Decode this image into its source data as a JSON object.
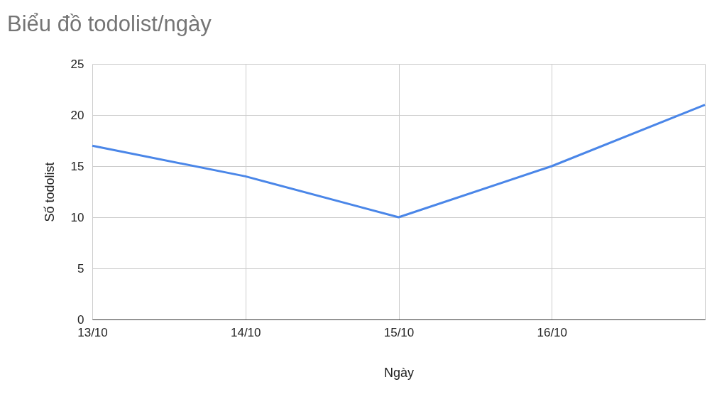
{
  "chart_data": {
    "type": "line",
    "title": "Biểu đồ todolist/ngày",
    "xlabel": "Ngày",
    "ylabel": "Số todolist",
    "categories": [
      "13/10",
      "14/10",
      "15/10",
      "16/10",
      null
    ],
    "series": [
      {
        "color": "#4a86e8",
        "values": [
          17,
          14,
          10,
          15,
          21
        ]
      }
    ],
    "ylim": [
      0,
      25
    ],
    "yticks": [
      0,
      5,
      10,
      15,
      20,
      25
    ],
    "grid": true,
    "legend": false,
    "marker": "none",
    "line_style": "solid"
  }
}
